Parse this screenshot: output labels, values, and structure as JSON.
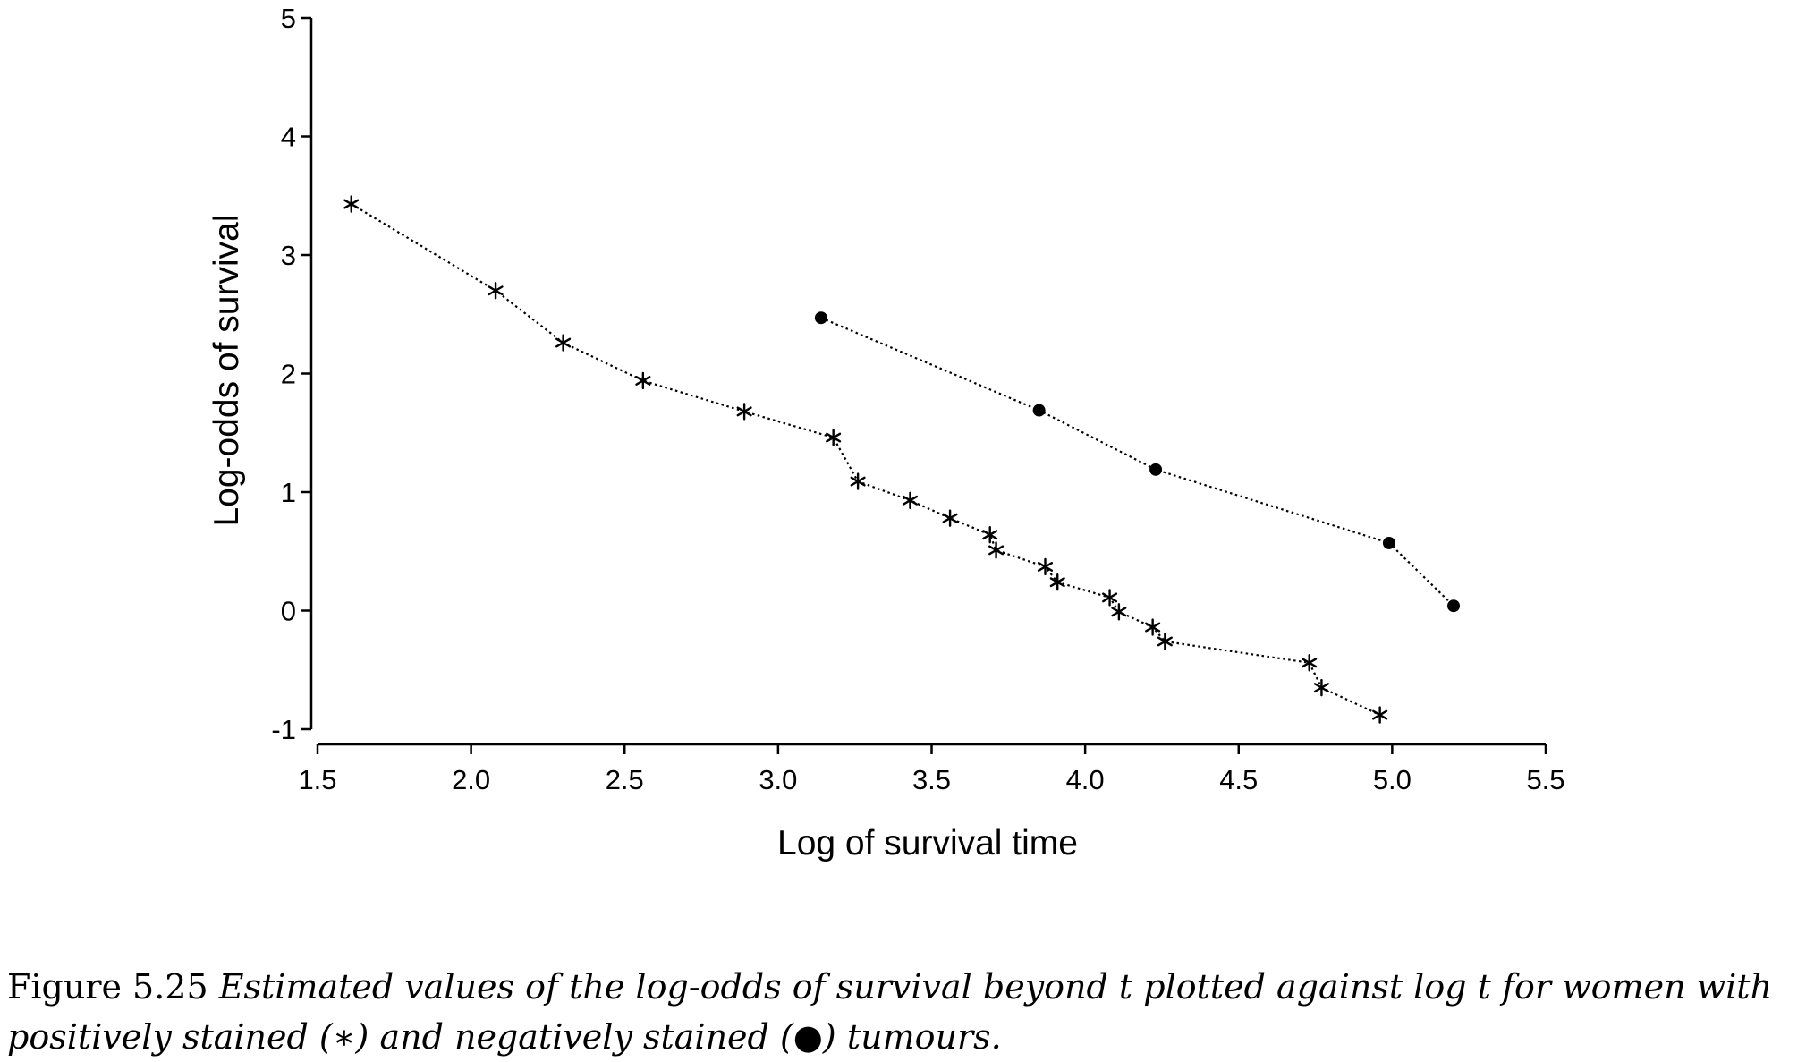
{
  "chart_data": {
    "type": "line",
    "xlabel": "Log of survival time",
    "ylabel": "Log-odds of survival",
    "xlim": [
      1.5,
      5.5
    ],
    "ylim": [
      -1,
      5
    ],
    "xticks": [
      "1.5",
      "2.0",
      "2.5",
      "3.0",
      "3.5",
      "4.0",
      "4.5",
      "5.0",
      "5.5"
    ],
    "yticks": [
      "-1",
      "0",
      "1",
      "2",
      "3",
      "4",
      "5"
    ],
    "grid": false,
    "series": [
      {
        "marker": "asterisk",
        "line_style": "dotted",
        "points": [
          {
            "x": 1.61,
            "y": 3.43
          },
          {
            "x": 2.08,
            "y": 2.7
          },
          {
            "x": 2.3,
            "y": 2.26
          },
          {
            "x": 2.56,
            "y": 1.94
          },
          {
            "x": 2.89,
            "y": 1.68
          },
          {
            "x": 3.18,
            "y": 1.46
          },
          {
            "x": 3.26,
            "y": 1.09
          },
          {
            "x": 3.43,
            "y": 0.93
          },
          {
            "x": 3.56,
            "y": 0.78
          },
          {
            "x": 3.69,
            "y": 0.64
          },
          {
            "x": 3.71,
            "y": 0.51
          },
          {
            "x": 3.87,
            "y": 0.37
          },
          {
            "x": 3.91,
            "y": 0.24
          },
          {
            "x": 4.08,
            "y": 0.11
          },
          {
            "x": 4.11,
            "y": -0.01
          },
          {
            "x": 4.22,
            "y": -0.14
          },
          {
            "x": 4.26,
            "y": -0.26
          },
          {
            "x": 4.73,
            "y": -0.44
          },
          {
            "x": 4.77,
            "y": -0.65
          },
          {
            "x": 4.96,
            "y": -0.88
          }
        ]
      },
      {
        "marker": "filled-circle",
        "line_style": "dotted",
        "points": [
          {
            "x": 3.14,
            "y": 2.47
          },
          {
            "x": 3.85,
            "y": 1.69
          },
          {
            "x": 4.23,
            "y": 1.19
          },
          {
            "x": 4.99,
            "y": 0.57
          },
          {
            "x": 5.2,
            "y": 0.04
          }
        ]
      }
    ]
  },
  "caption": {
    "label": "Figure 5.25",
    "text": "Estimated values of the log-odds of survival beyond t plotted against log t for women with positively stained (∗) and negatively stained (●) tumours."
  },
  "colors": {
    "ink": "#000000",
    "background": "#ffffff"
  }
}
